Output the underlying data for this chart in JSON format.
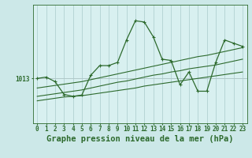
{
  "title": "Graphe pression niveau de la mer (hPa)",
  "x_hours": [
    0,
    1,
    2,
    3,
    4,
    5,
    6,
    7,
    8,
    9,
    10,
    11,
    12,
    13,
    14,
    15,
    16,
    17,
    18,
    19,
    20,
    21,
    22,
    23
  ],
  "y_main": [
    1013.0,
    1013.2,
    1012.5,
    1010.5,
    1010.2,
    1010.4,
    1013.5,
    1015.0,
    1015.0,
    1015.5,
    1019.0,
    1022.0,
    1021.8,
    1019.5,
    1016.0,
    1015.8,
    1012.0,
    1014.0,
    1011.0,
    1011.0,
    1015.5,
    1019.0,
    1018.5,
    1018.0
  ],
  "y_env1": [
    1009.5,
    1009.7,
    1009.9,
    1010.1,
    1010.2,
    1010.3,
    1010.5,
    1010.7,
    1010.9,
    1011.1,
    1011.3,
    1011.5,
    1011.8,
    1012.0,
    1012.2,
    1012.4,
    1012.6,
    1012.8,
    1013.0,
    1013.2,
    1013.4,
    1013.6,
    1013.8,
    1014.0
  ],
  "y_env2": [
    1010.2,
    1010.4,
    1010.6,
    1010.8,
    1011.0,
    1011.2,
    1011.5,
    1011.8,
    1012.1,
    1012.4,
    1012.6,
    1012.9,
    1013.2,
    1013.5,
    1013.7,
    1014.0,
    1014.2,
    1014.5,
    1014.7,
    1014.9,
    1015.1,
    1015.4,
    1015.7,
    1016.0
  ],
  "y_env3": [
    1011.5,
    1011.7,
    1011.9,
    1012.1,
    1012.3,
    1012.5,
    1012.8,
    1013.1,
    1013.4,
    1013.7,
    1014.0,
    1014.3,
    1014.6,
    1014.9,
    1015.2,
    1015.5,
    1015.8,
    1016.1,
    1016.4,
    1016.6,
    1016.9,
    1017.2,
    1017.5,
    1017.8
  ],
  "line_color": "#2d6a2d",
  "bg_color": "#cce8e8",
  "plot_bg": "#d8f0f0",
  "grid_color": "#aacccc",
  "hline_color": "#b0c8c8",
  "ylim_min": 1006.0,
  "ylim_max": 1024.5,
  "hline_y": 1013.0,
  "title_fontsize": 7.5,
  "tick_fontsize": 5.5
}
